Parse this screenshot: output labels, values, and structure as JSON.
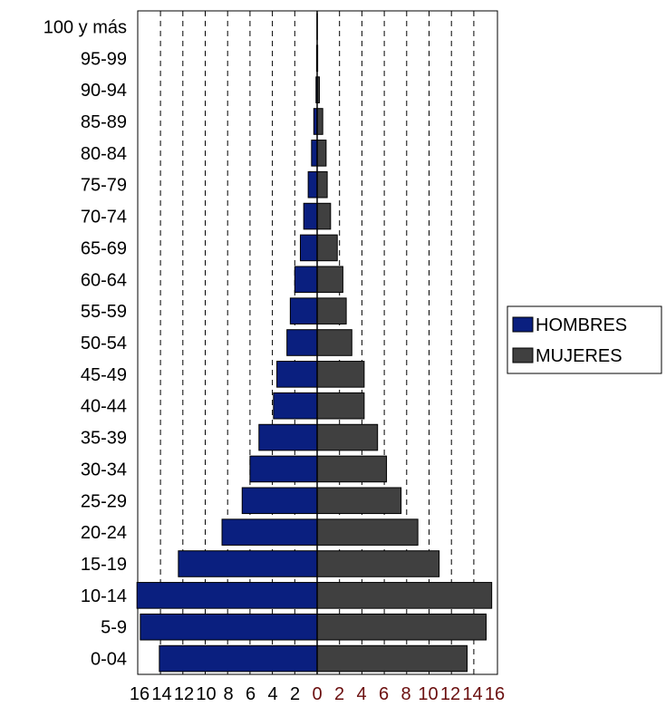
{
  "chart_data": {
    "type": "bar",
    "orientation": "horizontal-population-pyramid",
    "categories": [
      "0-04",
      "5-9",
      "10-14",
      "15-19",
      "20-24",
      "25-29",
      "30-34",
      "35-39",
      "40-44",
      "45-49",
      "50-54",
      "55-59",
      "60-64",
      "65-69",
      "70-74",
      "75-79",
      "80-84",
      "85-89",
      "90-94",
      "95-99",
      "100 y más"
    ],
    "series": [
      {
        "name": "HOMBRES",
        "color": "#0a1f7f",
        "side": "left",
        "values": [
          14.1,
          15.8,
          16.1,
          12.4,
          8.5,
          6.7,
          6.0,
          5.2,
          3.9,
          3.6,
          2.7,
          2.4,
          2.0,
          1.5,
          1.2,
          0.8,
          0.5,
          0.3,
          0.1,
          0.05,
          0.02
        ]
      },
      {
        "name": "MUJERES",
        "color": "#404040",
        "side": "right",
        "values": [
          13.4,
          15.1,
          15.6,
          10.9,
          9.0,
          7.5,
          6.2,
          5.4,
          4.2,
          4.2,
          3.1,
          2.6,
          2.3,
          1.8,
          1.2,
          0.9,
          0.8,
          0.5,
          0.2,
          0.05,
          0.02
        ]
      }
    ],
    "x_ticks_left": [
      "16",
      "14",
      "12",
      "10",
      "8",
      "6",
      "4",
      "2"
    ],
    "x_ticks_right": [
      "0",
      "2",
      "4",
      "6",
      "8",
      "10",
      "12",
      "14",
      "16"
    ],
    "xlim": [
      -16,
      16
    ],
    "grid": "vertical dashed",
    "legend_position": "right",
    "xlabel": "",
    "ylabel": "",
    "title": ""
  }
}
